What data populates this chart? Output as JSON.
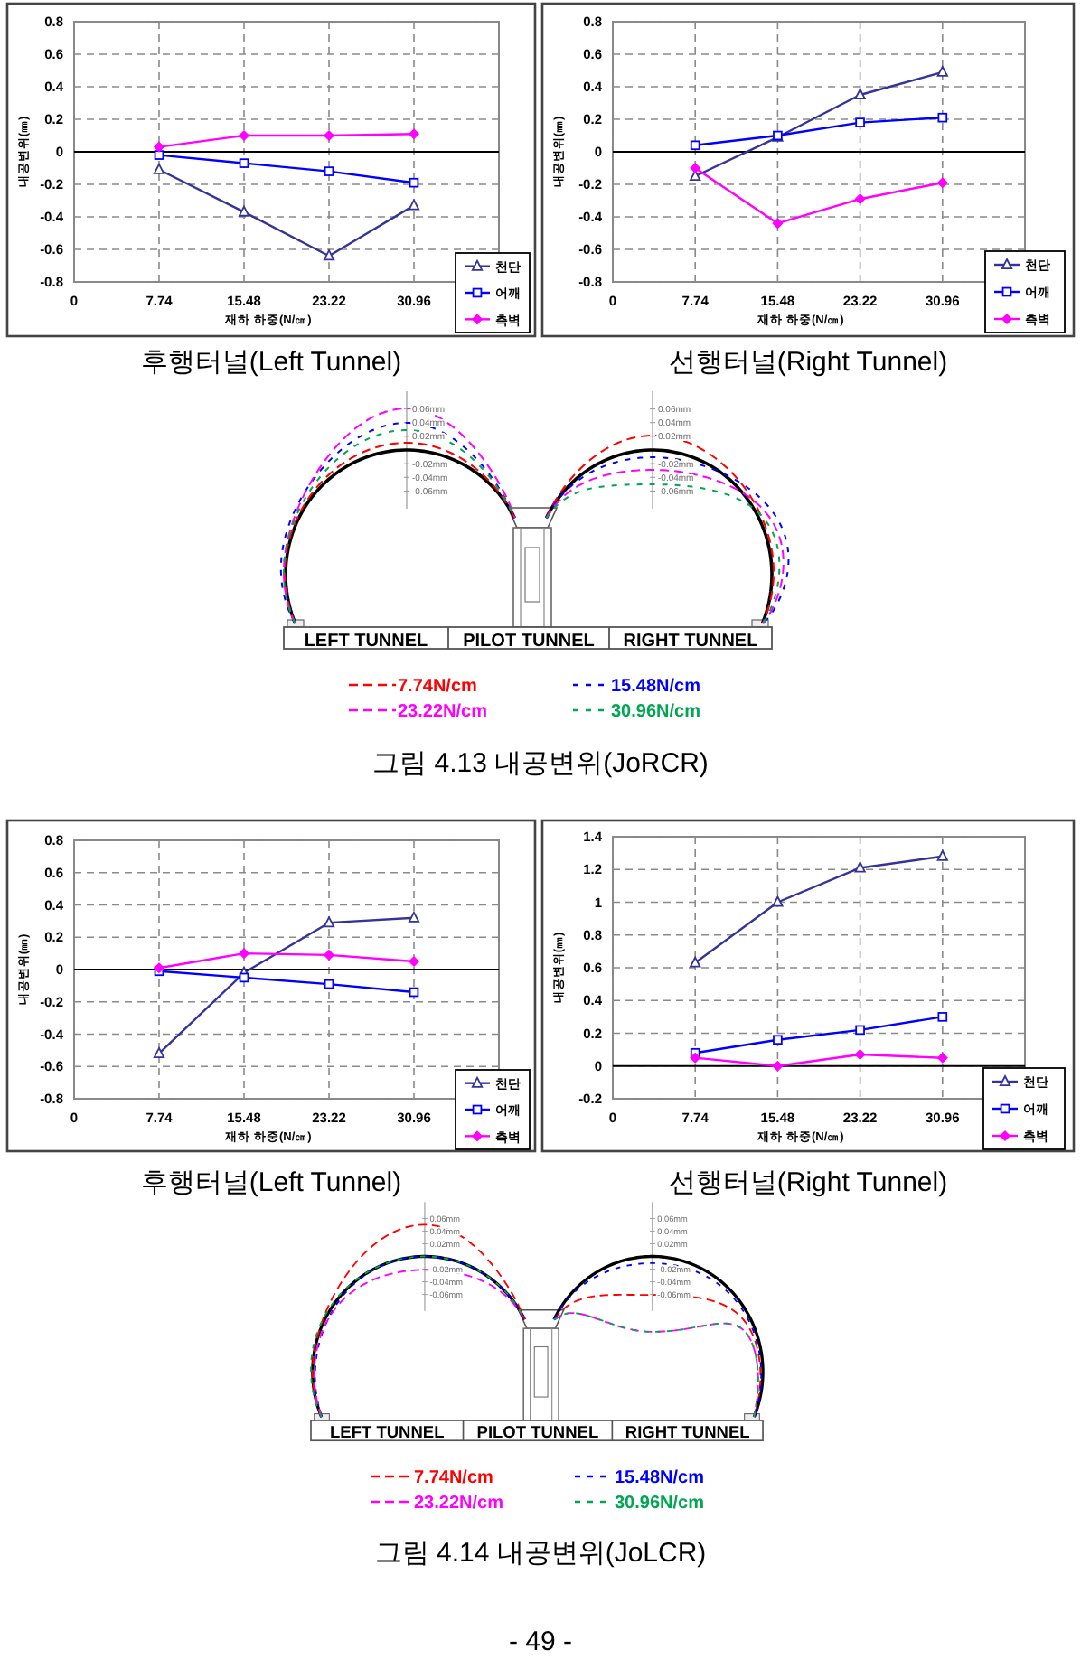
{
  "chart_data": [
    {
      "type": "line",
      "title": "후행터널(Left Tunnel)",
      "xlabel": "재하 하중(N/㎝)",
      "ylabel": "내공변위(㎜)",
      "x": [
        7.74,
        15.48,
        23.22,
        30.96
      ],
      "xlim": [
        0,
        38.7
      ],
      "xticks": [
        0,
        7.74,
        15.48,
        23.22,
        30.96
      ],
      "ylim": [
        -0.8,
        0.8
      ],
      "yticks": [
        -0.8,
        -0.6,
        -0.4,
        -0.2,
        0,
        0.2,
        0.4,
        0.6,
        0.8
      ],
      "grid": true,
      "legend": "bottom right",
      "series": [
        {
          "name": "천단",
          "color": "#333399",
          "marker": "triangle",
          "values": [
            -0.11,
            -0.37,
            -0.64,
            -0.33
          ]
        },
        {
          "name": "어깨",
          "color": "#0000ff",
          "marker": "square",
          "values": [
            -0.02,
            -0.07,
            -0.12,
            -0.19
          ]
        },
        {
          "name": "측벽",
          "color": "#ff00ff",
          "marker": "diamond",
          "values": [
            0.03,
            0.1,
            0.1,
            0.11
          ]
        }
      ]
    },
    {
      "type": "line",
      "title": "선행터널(Right Tunnel)",
      "xlabel": "재하 하중(N/㎝)",
      "ylabel": "내공변위(㎜)",
      "x": [
        7.74,
        15.48,
        23.22,
        30.96
      ],
      "xlim": [
        0,
        38.7
      ],
      "xticks": [
        0,
        7.74,
        15.48,
        23.22,
        30.96
      ],
      "ylim": [
        -0.8,
        0.8
      ],
      "yticks": [
        -0.8,
        -0.6,
        -0.4,
        -0.2,
        0,
        0.2,
        0.4,
        0.6,
        0.8
      ],
      "grid": true,
      "legend": "bottom right",
      "series": [
        {
          "name": "천단",
          "color": "#333399",
          "marker": "triangle",
          "values": [
            -0.15,
            0.09,
            0.35,
            0.49
          ]
        },
        {
          "name": "어깨",
          "color": "#0000ff",
          "marker": "square",
          "values": [
            0.04,
            0.1,
            0.18,
            0.21
          ]
        },
        {
          "name": "측벽",
          "color": "#ff00ff",
          "marker": "diamond",
          "values": [
            -0.1,
            -0.44,
            -0.29,
            -0.19
          ]
        }
      ]
    },
    {
      "type": "other",
      "annotations": [
        "LEFT TUNNEL",
        "PILOT TUNNEL",
        "RIGHT TUNNEL",
        "0.06mm",
        "0.04mm",
        "0.02mm",
        "-0.02mm",
        "-0.04mm",
        "-0.06mm",
        "0.06mm",
        "0.04mm",
        "0.02mm",
        "-0.02mm",
        "-0.04mm",
        "-0.06mm",
        "7.74N/cm",
        "15.48N/cm",
        "23.22N/cm",
        "30.96N/cm",
        "그림 4.13 내공변위(JoRCR)"
      ]
    },
    {
      "type": "line",
      "title": "후행터널(Left Tunnel)",
      "xlabel": "재하 하중(N/㎝)",
      "ylabel": "내공변위(㎜)",
      "x": [
        7.74,
        15.48,
        23.22,
        30.96
      ],
      "xlim": [
        0,
        38.7
      ],
      "xticks": [
        0,
        7.74,
        15.48,
        23.22,
        30.96
      ],
      "ylim": [
        -0.8,
        0.8
      ],
      "yticks": [
        -0.8,
        -0.6,
        -0.4,
        -0.2,
        0,
        0.2,
        0.4,
        0.6,
        0.8
      ],
      "grid": true,
      "legend": "bottom right",
      "series": [
        {
          "name": "천단",
          "color": "#333399",
          "marker": "triangle",
          "values": [
            -0.52,
            -0.02,
            0.29,
            0.32
          ]
        },
        {
          "name": "어깨",
          "color": "#0000ff",
          "marker": "square",
          "values": [
            -0.01,
            -0.05,
            -0.09,
            -0.14
          ]
        },
        {
          "name": "측벽",
          "color": "#ff00ff",
          "marker": "diamond",
          "values": [
            0.01,
            0.1,
            0.09,
            0.05
          ]
        }
      ]
    },
    {
      "type": "line",
      "title": "선행터널(Right Tunnel)",
      "xlabel": "재하 하중(N/㎝)",
      "ylabel": "내공변위(㎜)",
      "x": [
        7.74,
        15.48,
        23.22,
        30.96
      ],
      "xlim": [
        0,
        38.7
      ],
      "xticks": [
        0,
        7.74,
        15.48,
        23.22,
        30.96
      ],
      "ylim": [
        -0.2,
        1.4
      ],
      "yticks": [
        -0.2,
        0,
        0.2,
        0.4,
        0.6,
        0.8,
        1,
        1.2,
        1.4
      ],
      "grid": true,
      "legend": "bottom right",
      "series": [
        {
          "name": "천단",
          "color": "#333399",
          "marker": "triangle",
          "values": [
            0.63,
            1.0,
            1.21,
            1.28
          ]
        },
        {
          "name": "어깨",
          "color": "#0000ff",
          "marker": "square",
          "values": [
            0.08,
            0.16,
            0.22,
            0.3
          ]
        },
        {
          "name": "측벽",
          "color": "#ff00ff",
          "marker": "diamond",
          "values": [
            0.05,
            0.0,
            0.07,
            0.05
          ]
        }
      ]
    },
    {
      "type": "other",
      "annotations": [
        "LEFT TUNNEL",
        "PILOT TUNNEL",
        "RIGHT TUNNEL",
        "0.06mm",
        "0.04mm",
        "0.02mm",
        "-0.02mm",
        "-0.04mm",
        "-0.06mm",
        "0.06mm",
        "0.04mm",
        "0.02mm",
        "-0.02mm",
        "-0.04mm",
        "-0.06mm",
        "7.74N/cm",
        "15.48N/cm",
        "23.22N/cm",
        "30.96N/cm",
        "그림 4.14 내공변위(JoLCR)",
        "- 49 -"
      ]
    }
  ]
}
